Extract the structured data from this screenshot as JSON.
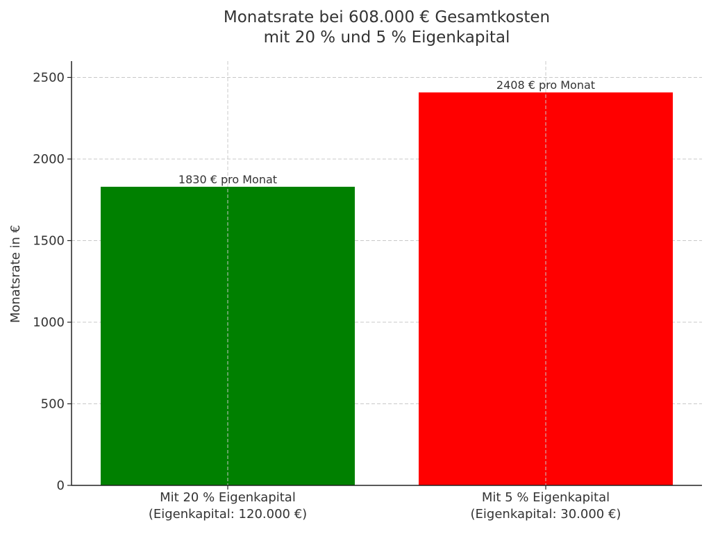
{
  "chart_data": {
    "type": "bar",
    "title": "Monatsrate bei 608.000 € Gesamtkosten\nmit 20 % und 5 % Eigenkapital",
    "xlabel": "",
    "ylabel": "Monatsrate in €",
    "categories": [
      "Mit 20 % Eigenkapital\n(Eigenkapital: 120.000 €)",
      "Mit 5 % Eigenkapital\n(Eigenkapital: 30.000 €)"
    ],
    "values": [
      1830,
      2408
    ],
    "value_labels": [
      "1830 € pro Monat",
      "2408 € pro Monat"
    ],
    "colors": [
      "#008000",
      "#ff0000"
    ],
    "ylim": [
      0,
      2600
    ],
    "yticks": [
      0,
      500,
      1000,
      1500,
      2000,
      2500
    ],
    "grid": true
  }
}
